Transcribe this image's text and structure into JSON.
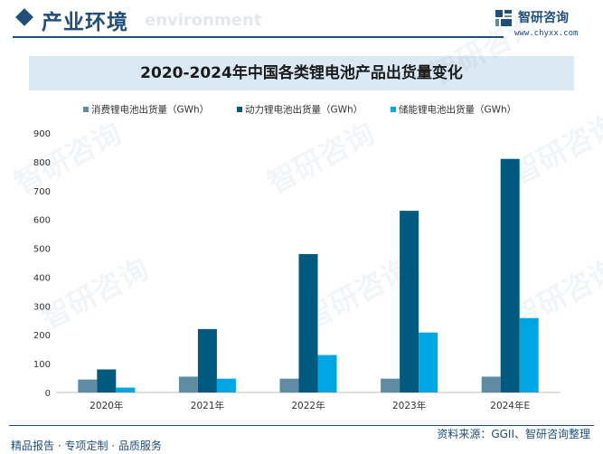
{
  "header": {
    "title": "产业环境",
    "subtitle": "environment"
  },
  "brand": {
    "name": "智研咨询",
    "url": "www.chyxx.com",
    "icon": "brand-logo-icon"
  },
  "watermark": "智研咨询",
  "footer": {
    "left": "精品报告 · 专项定制 · 品质服务",
    "right": "资料来源：GGII、智研咨询整理"
  },
  "colors": {
    "primary": "#1f4e79",
    "consumer": "#5f8ba3",
    "power": "#005a80",
    "storage": "#00a6e3"
  },
  "chart_data": {
    "type": "bar",
    "title": "2020-2024年中国各类锂电池产品出货量变化",
    "categories": [
      "2020年",
      "2021年",
      "2022年",
      "2023年",
      "2024年E"
    ],
    "series": [
      {
        "name": "消费锂电池出货量（GWh）",
        "values": [
          45,
          55,
          48,
          48,
          55
        ]
      },
      {
        "name": "动力锂电池出货量（GWh）",
        "values": [
          80,
          220,
          480,
          630,
          810
        ]
      },
      {
        "name": "储能锂电池出货量（GWh）",
        "values": [
          17,
          48,
          130,
          208,
          258
        ]
      }
    ],
    "yticks": [
      0,
      100,
      200,
      300,
      400,
      500,
      600,
      700,
      800,
      900
    ],
    "ylim": [
      0,
      900
    ],
    "xlabel": "",
    "ylabel": "",
    "legend_position": "top",
    "grid": false
  }
}
